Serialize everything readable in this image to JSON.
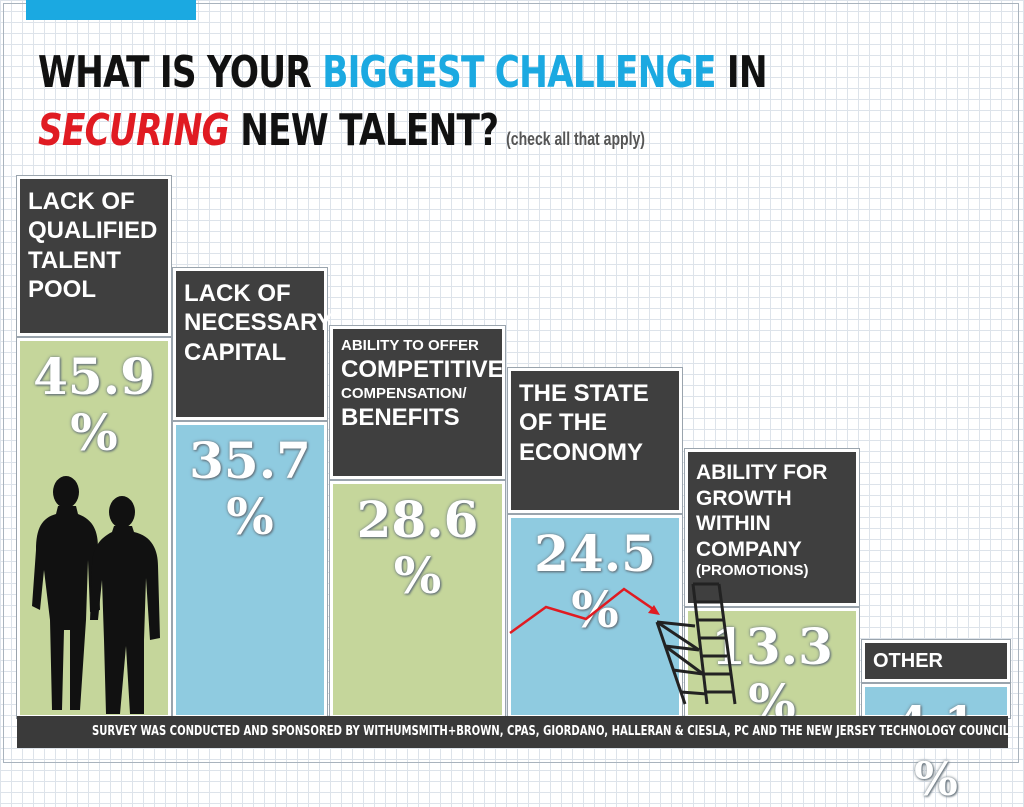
{
  "title": {
    "line1_a": "WHAT IS YOUR ",
    "line1_b": "BIGGEST CHALLENGE",
    "line1_c": " IN",
    "line2_a": "SECURING",
    "line2_b": " NEW TALENT?",
    "note": "(check all that apply)"
  },
  "categories": [
    {
      "lines": [
        "LACK OF",
        "QUALIFIED",
        "TALENT",
        "POOL"
      ]
    },
    {
      "lines": [
        "LACK OF",
        "NECESSARY",
        "CAPITAL"
      ]
    },
    {
      "lines": [
        "ABILITY TO OFFER",
        "COMPETITIVE",
        "COMPENSATION/",
        "BENEFITS"
      ]
    },
    {
      "lines": [
        "THE STATE",
        "OF THE",
        "ECONOMY"
      ]
    },
    {
      "lines": [
        "ABILITY FOR",
        "GROWTH",
        "WITHIN",
        "COMPANY",
        "(PROMOTIONS)"
      ]
    },
    {
      "lines": [
        "OTHER"
      ]
    }
  ],
  "chart_data": {
    "type": "bar",
    "categories": [
      "LACK OF QUALIFIED TALENT POOL",
      "LACK OF NECESSARY CAPITAL",
      "ABILITY TO OFFER COMPETITIVE COMPENSATION/ BENEFITS",
      "THE STATE OF THE ECONOMY",
      "ABILITY FOR GROWTH WITHIN COMPANY (PROMOTIONS)",
      "OTHER"
    ],
    "values": [
      45.9,
      35.7,
      28.6,
      24.5,
      13.3,
      4.1
    ],
    "value_labels": [
      "45.9 %",
      "35.7 %",
      "28.6 %",
      "24.5 %",
      "13.3 %",
      "4.1 %"
    ],
    "unit": "%",
    "colors": [
      "#c5d69b",
      "#8fcbe0",
      "#c5d69b",
      "#8fcbe0",
      "#c5d69b",
      "#8fcbe0"
    ],
    "title": "WHAT IS YOUR BIGGEST CHALLENGE IN SECURING NEW TALENT?",
    "xlabel": "",
    "ylabel": "",
    "grid": false
  },
  "footer": "SURVEY WAS CONDUCTED AND SPONSORED BY WITHUMSMITH+BROWN, CPAS, GIORDANO, HALLERAN & CIESLA, PC AND THE NEW JERSEY TECHNOLOGY COUNCIL.",
  "colors": {
    "accent_blue": "#1ba9e1",
    "accent_red": "#e01b22",
    "label_bg": "#3f3f3f",
    "bar_green": "#c5d69b",
    "bar_blue": "#8fcbe0"
  }
}
